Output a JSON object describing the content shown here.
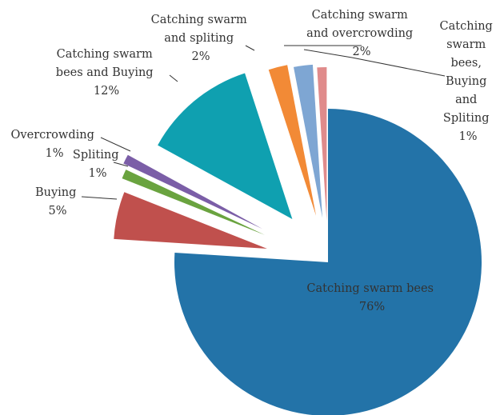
{
  "chart_data": {
    "type": "pie",
    "title": "",
    "slices": [
      {
        "name": "Catching swarm bees",
        "value": 76,
        "label": "76%",
        "color": "#2373a8"
      },
      {
        "name": "Buying",
        "value": 5,
        "label": "5%",
        "color": "#c0504d"
      },
      {
        "name": "Spliting",
        "value": 1,
        "label": "1%",
        "color": "#6aa33f"
      },
      {
        "name": "Overcrowding",
        "value": 1,
        "label": "1%",
        "color": "#7b5ea7"
      },
      {
        "name": "Catching swarm bees and Buying",
        "value": 12,
        "label": "12%",
        "color": "#0fa0b0"
      },
      {
        "name": "Catching swarm and spliting",
        "value": 2,
        "label": "2%",
        "color": "#f28a36"
      },
      {
        "name": "Catching swarm and overcrowding",
        "value": 2,
        "label": "2%",
        "color": "#7ea6d3"
      },
      {
        "name": "Catching swarm bees, Buying and Spliting",
        "value": 1,
        "label": "1%",
        "color": "#e08b8b"
      }
    ]
  }
}
